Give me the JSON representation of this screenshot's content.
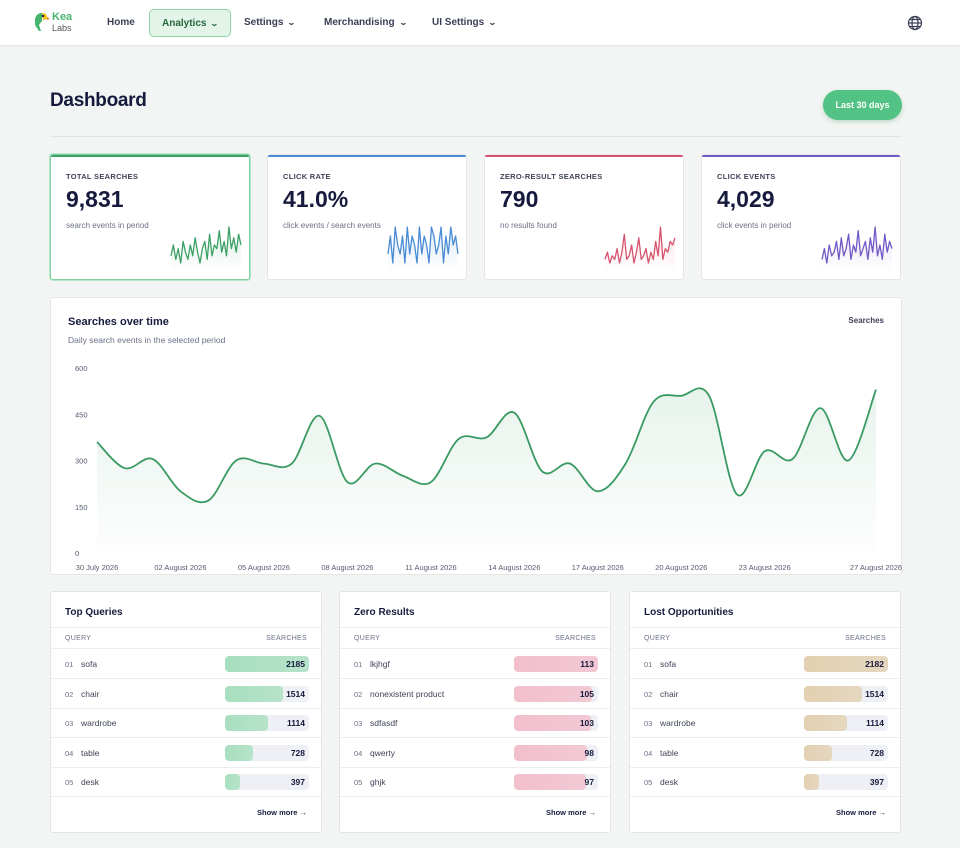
{
  "nav": {
    "logo_top": "Kea",
    "logo_bottom": "Labs",
    "items": [
      {
        "label": "Home",
        "chevron": false,
        "active": false
      },
      {
        "label": "Analytics",
        "chevron": true,
        "active": true
      },
      {
        "label": "Settings",
        "chevron": true,
        "active": false
      },
      {
        "label": "Merchandising",
        "chevron": true,
        "active": false
      },
      {
        "label": "UI Settings",
        "chevron": true,
        "active": false
      }
    ],
    "globe_icon": "globe-icon"
  },
  "header": {
    "title": "Dashboard",
    "range_button": "Last 30 days"
  },
  "stats": [
    {
      "label": "TOTAL SEARCHES",
      "value": "9,831",
      "sub": "search events in period",
      "color": "#3da066",
      "spark": [
        4,
        7,
        3,
        6,
        2,
        8,
        5,
        3,
        7,
        4,
        9,
        5,
        2,
        6,
        8,
        3,
        10,
        4,
        7,
        6,
        11,
        5,
        8,
        4,
        12,
        6,
        9,
        5,
        10,
        7
      ]
    },
    {
      "label": "CLICK RATE",
      "value": "41.0%",
      "sub": "click events / search events",
      "color": "#4a8bd6",
      "spark": [
        6,
        8,
        5,
        9,
        7,
        6,
        8,
        5,
        9,
        6,
        8,
        7,
        5,
        9,
        6,
        8,
        7,
        5,
        9,
        8,
        6,
        7,
        9,
        5,
        8,
        6,
        9,
        7,
        8,
        6
      ]
    },
    {
      "label": "ZERO-RESULT SEARCHES",
      "value": "790",
      "sub": "no results found",
      "color": "#d6546e",
      "spark": [
        3,
        5,
        2,
        4,
        3,
        6,
        2,
        5,
        10,
        3,
        4,
        7,
        2,
        5,
        9,
        3,
        4,
        6,
        2,
        5,
        3,
        8,
        4,
        12,
        3,
        6,
        5,
        8,
        7,
        9
      ]
    },
    {
      "label": "CLICK EVENTS",
      "value": "4,029",
      "sub": "click events in period",
      "color": "#7159c6",
      "spark": [
        3,
        6,
        2,
        7,
        4,
        5,
        8,
        3,
        9,
        4,
        6,
        10,
        3,
        7,
        5,
        11,
        4,
        6,
        8,
        3,
        9,
        5,
        12,
        4,
        7,
        3,
        10,
        5,
        8,
        6
      ]
    }
  ],
  "main_chart": {
    "title": "Searches over time",
    "subtitle": "Daily search events in the selected period",
    "legend": "Searches",
    "color": "#3a9a63"
  },
  "chart_data": {
    "type": "area",
    "title": "Searches over time",
    "ylim": [
      0,
      600
    ],
    "yticks": [
      0,
      150,
      300,
      450,
      600
    ],
    "xtick_labels": [
      "30 July 2026",
      "02 August 2026",
      "05 August 2026",
      "08 August 2026",
      "11 August 2026",
      "14 August 2026",
      "17 August 2026",
      "20 August 2026",
      "23 August 2026",
      "27 August 2026"
    ],
    "series": [
      {
        "name": "Searches",
        "x": [
          "30 July 2026",
          "31 July 2026",
          "01 August 2026",
          "02 August 2026",
          "03 August 2026",
          "04 August 2026",
          "05 August 2026",
          "06 August 2026",
          "07 August 2026",
          "08 August 2026",
          "09 August 2026",
          "10 August 2026",
          "11 August 2026",
          "12 August 2026",
          "13 August 2026",
          "14 August 2026",
          "15 August 2026",
          "16 August 2026",
          "17 August 2026",
          "18 August 2026",
          "19 August 2026",
          "20 August 2026",
          "21 August 2026",
          "22 August 2026",
          "23 August 2026",
          "24 August 2026",
          "25 August 2026",
          "26 August 2026",
          "27 August 2026"
        ],
        "values": [
          360,
          275,
          305,
          200,
          170,
          300,
          290,
          290,
          445,
          230,
          290,
          250,
          230,
          370,
          375,
          455,
          265,
          290,
          200,
          290,
          490,
          510,
          510,
          190,
          330,
          305,
          470,
          300,
          530
        ]
      }
    ]
  },
  "tables": [
    {
      "title": "Top Queries",
      "col1": "QUERY",
      "col2": "SEARCHES",
      "color": "#a8dfbf",
      "rows": [
        {
          "idx": "01",
          "query": "sofa",
          "value": "2185",
          "n": 2185
        },
        {
          "idx": "02",
          "query": "chair",
          "value": "1514",
          "n": 1514
        },
        {
          "idx": "03",
          "query": "wardrobe",
          "value": "1114",
          "n": 1114
        },
        {
          "idx": "04",
          "query": "table",
          "value": "728",
          "n": 728
        },
        {
          "idx": "05",
          "query": "desk",
          "value": "397",
          "n": 397
        }
      ],
      "max": 2185,
      "show_more": "Show more  →"
    },
    {
      "title": "Zero Results",
      "col1": "QUERY",
      "col2": "SEARCHES",
      "color": "#f2bfcc",
      "rows": [
        {
          "idx": "01",
          "query": "lkjhgf",
          "value": "113",
          "n": 113
        },
        {
          "idx": "02",
          "query": "nonexistent product",
          "value": "105",
          "n": 105
        },
        {
          "idx": "03",
          "query": "sdfasdf",
          "value": "103",
          "n": 103
        },
        {
          "idx": "04",
          "query": "qwerty",
          "value": "98",
          "n": 98
        },
        {
          "idx": "05",
          "query": "ghjk",
          "value": "97",
          "n": 97
        }
      ],
      "max": 113,
      "show_more": "Show more  →"
    },
    {
      "title": "Lost Opportunities",
      "col1": "QUERY",
      "col2": "SEARCHES",
      "color": "#e3d0b2",
      "rows": [
        {
          "idx": "01",
          "query": "sofa",
          "value": "2182",
          "n": 2182
        },
        {
          "idx": "02",
          "query": "chair",
          "value": "1514",
          "n": 1514
        },
        {
          "idx": "03",
          "query": "wardrobe",
          "value": "1114",
          "n": 1114
        },
        {
          "idx": "04",
          "query": "table",
          "value": "728",
          "n": 728
        },
        {
          "idx": "05",
          "query": "desk",
          "value": "397",
          "n": 397
        }
      ],
      "max": 2182,
      "show_more": "Show more  →"
    }
  ]
}
